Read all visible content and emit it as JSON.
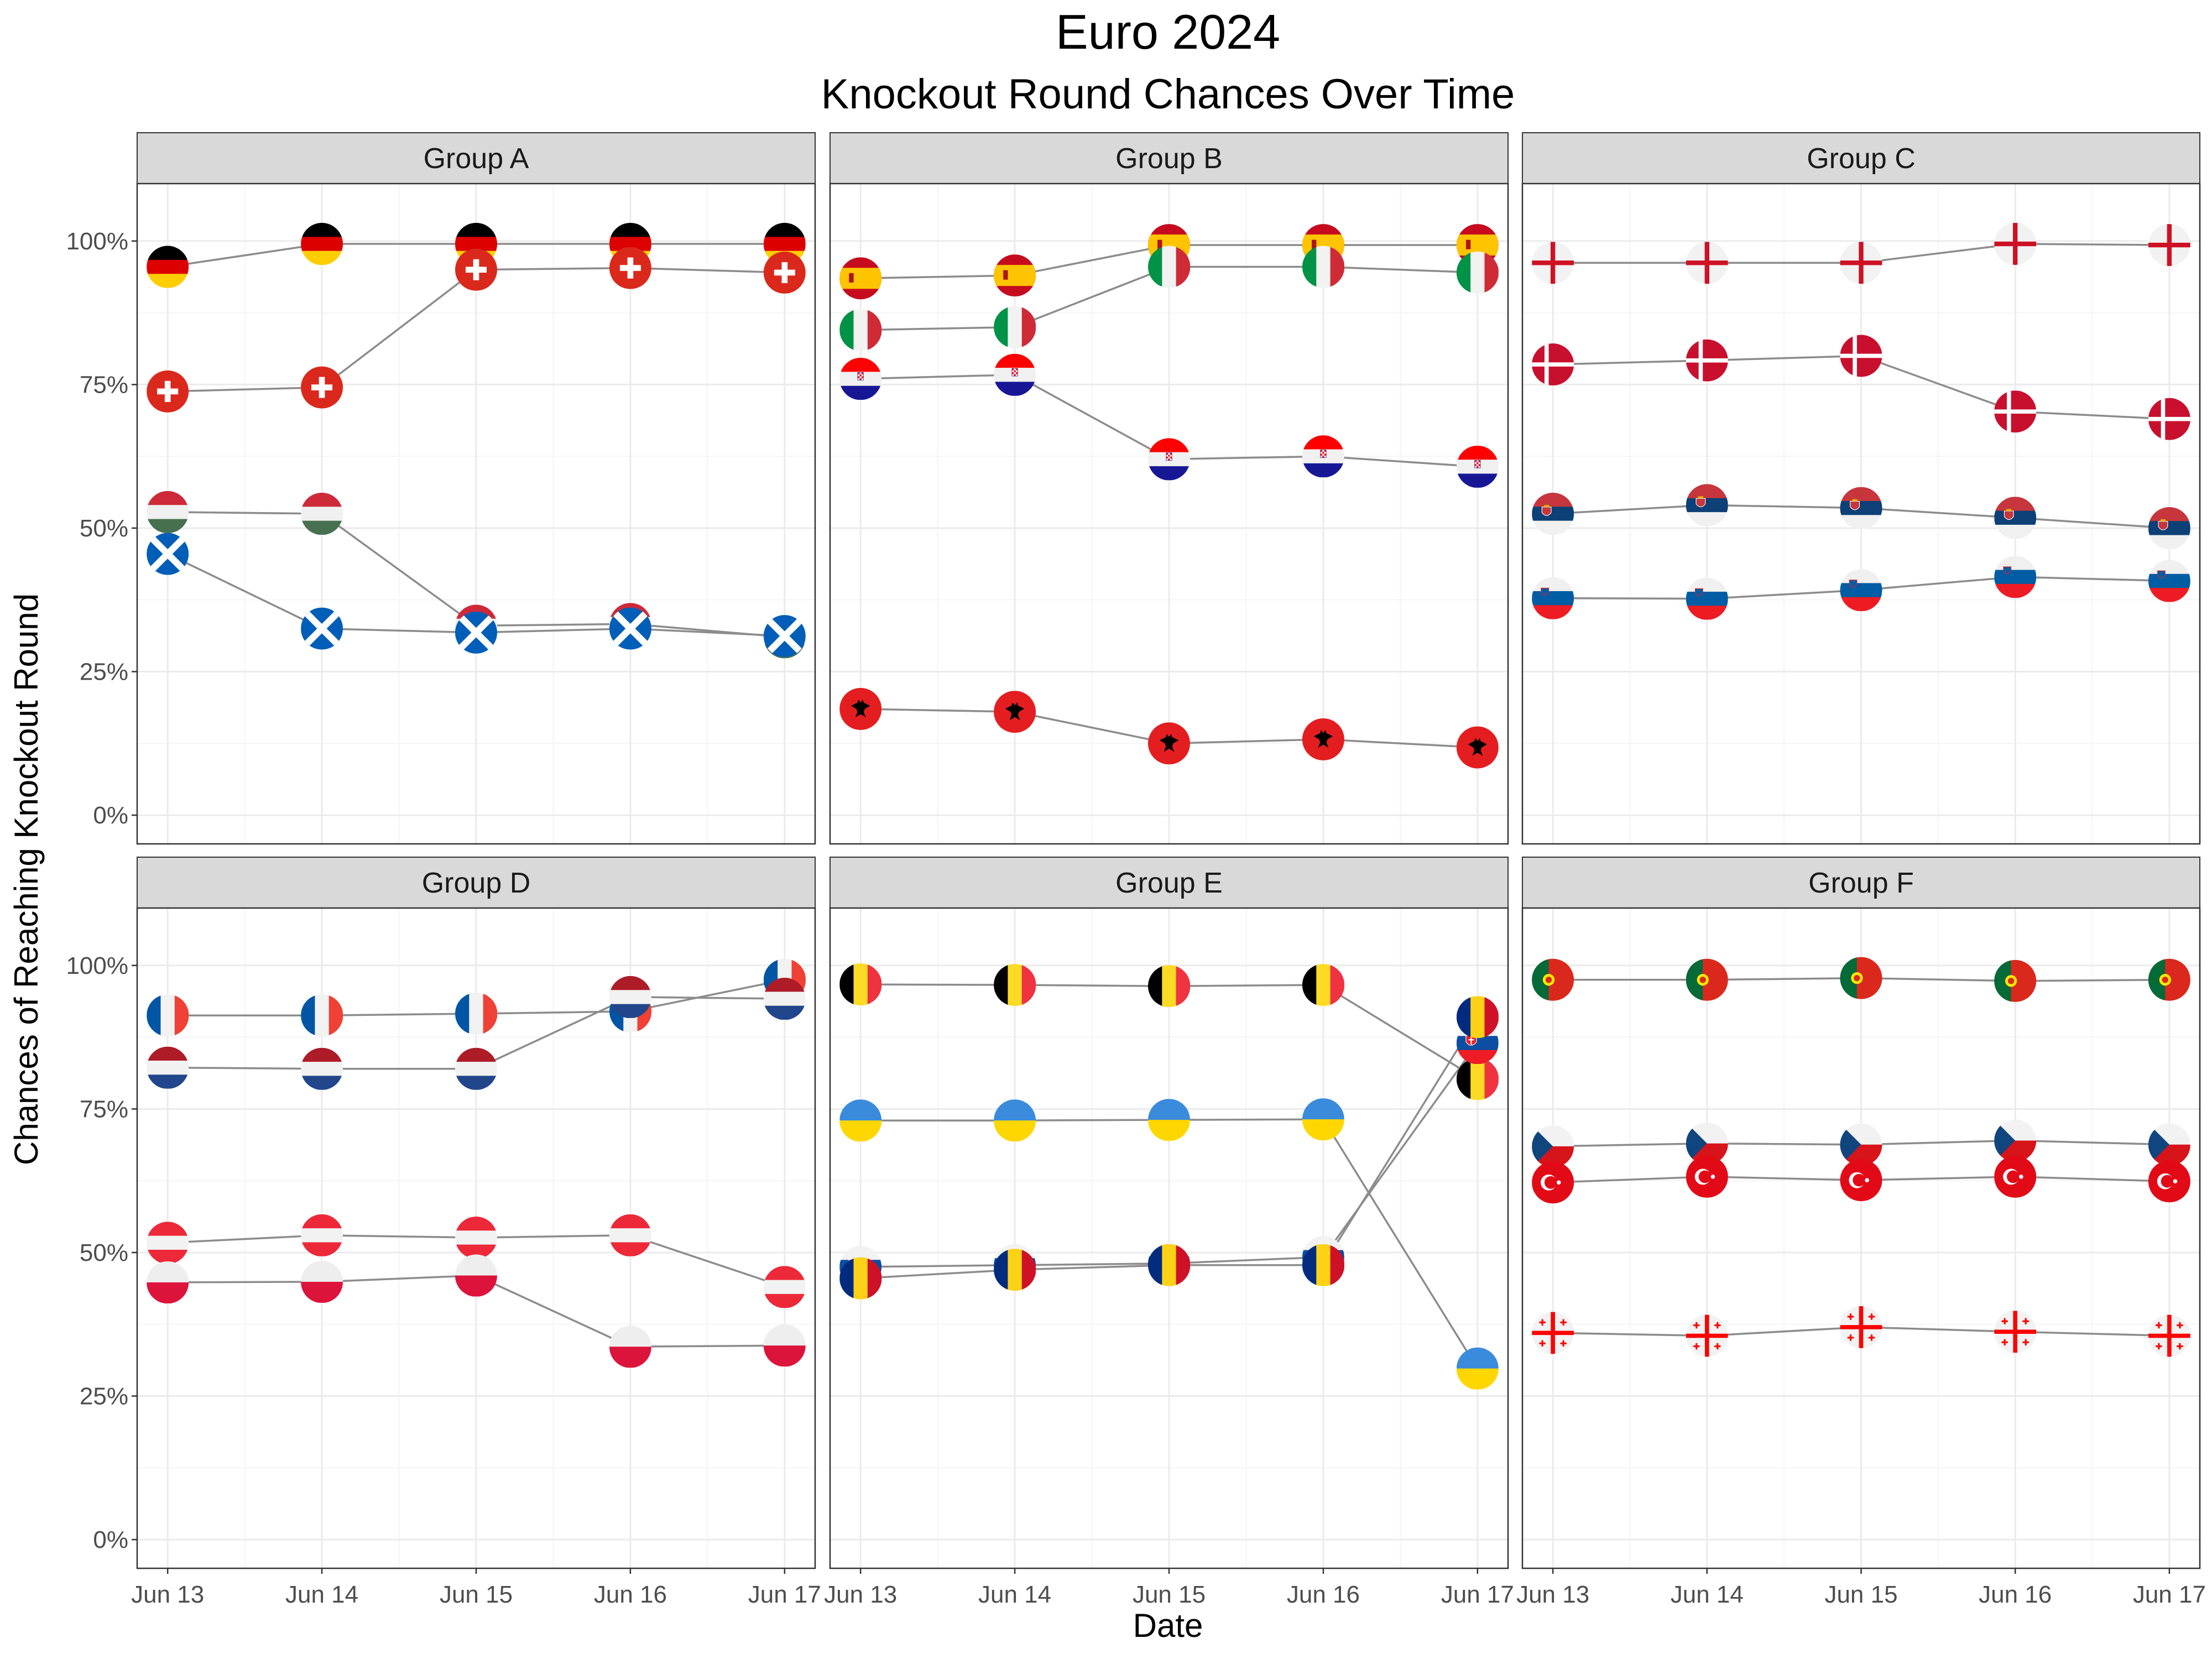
{
  "chart_data": {
    "type": "line",
    "title": "Euro 2024",
    "subtitle": "Knockout Round Chances Over Time",
    "xlabel": "Date",
    "ylabel": "Chances of Reaching Knockout Round",
    "x": [
      "Jun 13",
      "Jun 14",
      "Jun 15",
      "Jun 16",
      "Jun 17"
    ],
    "yticks": [
      "0%",
      "25%",
      "50%",
      "75%",
      "100%"
    ],
    "ylim": [
      -0.05,
      1.1
    ],
    "grid": true,
    "legend": "none",
    "panels": [
      {
        "group": "Group A",
        "series": [
          {
            "flag": "germany",
            "values": [
              0.955,
              0.995,
              0.995,
              0.995,
              0.995
            ]
          },
          {
            "flag": "switzerland",
            "values": [
              0.738,
              0.745,
              0.95,
              0.953,
              0.945
            ]
          },
          {
            "flag": "hungary",
            "values": [
              0.528,
              0.525,
              0.33,
              0.333,
              0.31
            ]
          },
          {
            "flag": "scotland",
            "values": [
              0.455,
              0.325,
              0.318,
              0.325,
              0.312
            ]
          }
        ]
      },
      {
        "group": "Group B",
        "series": [
          {
            "flag": "spain",
            "values": [
              0.935,
              0.94,
              0.993,
              0.993,
              0.993
            ]
          },
          {
            "flag": "italy",
            "values": [
              0.845,
              0.85,
              0.955,
              0.955,
              0.945
            ]
          },
          {
            "flag": "croatia",
            "values": [
              0.76,
              0.767,
              0.62,
              0.625,
              0.607
            ]
          },
          {
            "flag": "albania",
            "values": [
              0.185,
              0.18,
              0.125,
              0.132,
              0.118
            ]
          }
        ]
      },
      {
        "group": "Group C",
        "series": [
          {
            "flag": "england",
            "values": [
              0.962,
              0.962,
              0.962,
              0.995,
              0.993
            ]
          },
          {
            "flag": "denmark",
            "values": [
              0.785,
              0.792,
              0.8,
              0.703,
              0.69
            ]
          },
          {
            "flag": "serbia",
            "values": [
              0.525,
              0.54,
              0.535,
              0.518,
              0.5
            ]
          },
          {
            "flag": "slovenia",
            "values": [
              0.378,
              0.377,
              0.392,
              0.415,
              0.408
            ]
          }
        ]
      },
      {
        "group": "Group D",
        "series": [
          {
            "flag": "france",
            "values": [
              0.913,
              0.913,
              0.916,
              0.92,
              0.975
            ]
          },
          {
            "flag": "netherlands",
            "values": [
              0.822,
              0.82,
              0.82,
              0.945,
              0.942
            ]
          },
          {
            "flag": "austria",
            "values": [
              0.517,
              0.53,
              0.526,
              0.53,
              0.44
            ]
          },
          {
            "flag": "poland",
            "values": [
              0.448,
              0.449,
              0.46,
              0.336,
              0.338
            ]
          }
        ]
      },
      {
        "group": "Group E",
        "series": [
          {
            "flag": "belgium",
            "values": [
              0.967,
              0.966,
              0.964,
              0.966,
              0.802
            ]
          },
          {
            "flag": "ukraine",
            "values": [
              0.73,
              0.73,
              0.731,
              0.732,
              0.298
            ]
          },
          {
            "flag": "slovakia",
            "values": [
              0.475,
              0.478,
              0.481,
              0.492,
              0.865
            ]
          },
          {
            "flag": "romania",
            "values": [
              0.455,
              0.47,
              0.478,
              0.478,
              0.91
            ]
          }
        ]
      },
      {
        "group": "Group F",
        "series": [
          {
            "flag": "portugal",
            "values": [
              0.975,
              0.975,
              0.978,
              0.973,
              0.975
            ]
          },
          {
            "flag": "czechia",
            "values": [
              0.685,
              0.69,
              0.688,
              0.695,
              0.688
            ]
          },
          {
            "flag": "turkey",
            "values": [
              0.622,
              0.632,
              0.626,
              0.632,
              0.624
            ]
          },
          {
            "flag": "georgia",
            "values": [
              0.36,
              0.355,
              0.37,
              0.362,
              0.355
            ]
          }
        ]
      }
    ]
  },
  "colors": {
    "line": "#8c8c8c",
    "strip_bg": "#d9d9d9",
    "grid_major": "#ebebeb",
    "grid_minor": "#f5f5f5",
    "panel_border": "#333333"
  }
}
